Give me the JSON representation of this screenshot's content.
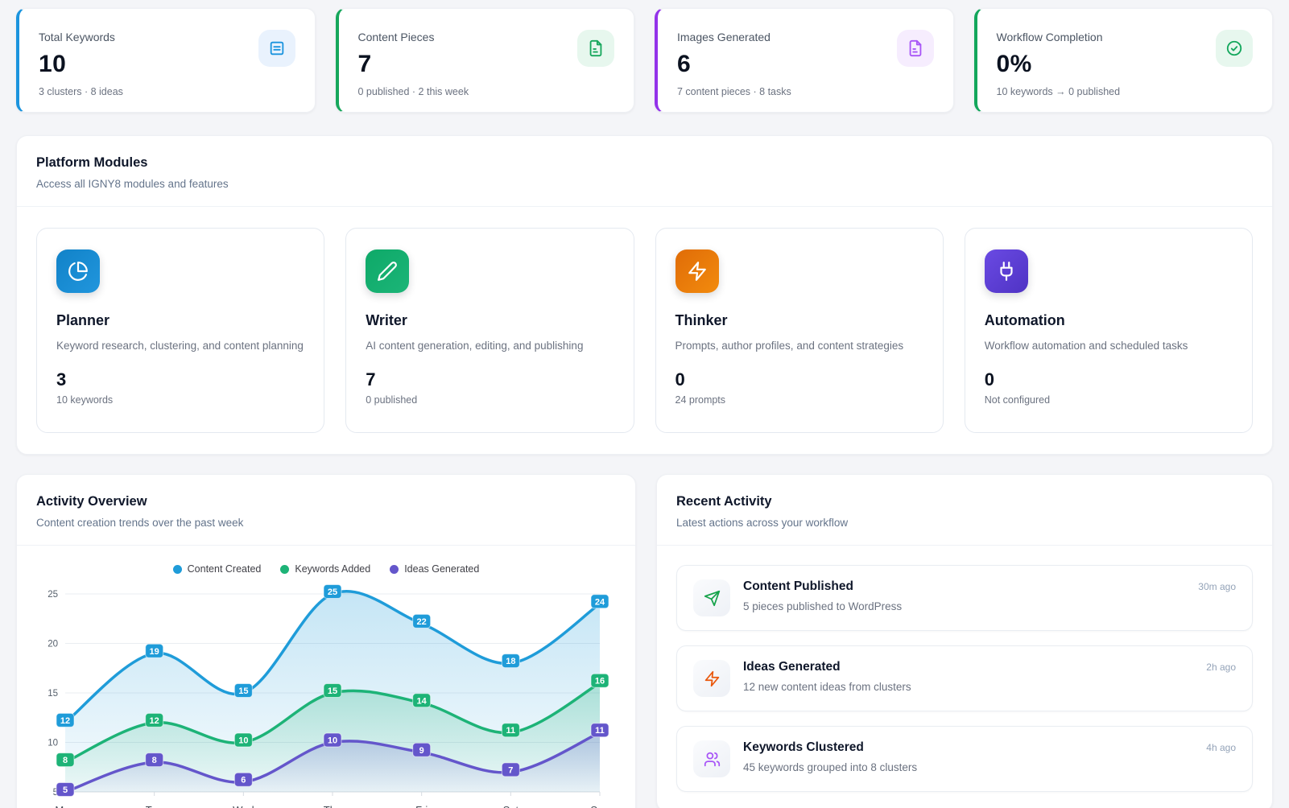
{
  "stats": [
    {
      "label": "Total Keywords",
      "value": "10",
      "caption": "3 clusters · 8 ideas",
      "accent": "#1b94de",
      "icon": "list-square-icon",
      "icon_bg": "#e9f2fd"
    },
    {
      "label": "Content Pieces",
      "value": "7",
      "caption": "0 published · 2 this week",
      "accent": "#16a75c",
      "icon": "file-text-icon",
      "icon_bg": "#e7f7ee"
    },
    {
      "label": "Images Generated",
      "value": "6",
      "caption": "7 content pieces · 8 tasks",
      "accent": "#9333ea",
      "icon": "file-text-icon",
      "icon_bg": "#f6edfe",
      "icon_color": "#a855f7"
    },
    {
      "label": "Workflow Completion",
      "value": "0%",
      "caption": "10 keywords → 0 published",
      "accent": "#13a75c",
      "icon": "check-circle-icon",
      "icon_bg": "#e7f7ee"
    }
  ],
  "modules_section": {
    "title": "Platform Modules",
    "subtitle": "Access all IGNY8 modules and features",
    "cards": [
      {
        "name": "Planner",
        "description": "Keyword research, clustering, and content planning",
        "value": "3",
        "caption": "10 keywords",
        "icon": "pie-chart-icon",
        "gradient": [
          "#1182c8",
          "#2196dd"
        ]
      },
      {
        "name": "Writer",
        "description": "AI content generation, editing, and publishing",
        "value": "7",
        "caption": "0 published",
        "icon": "pencil-icon",
        "gradient": [
          "#0ea968",
          "#1cb578"
        ]
      },
      {
        "name": "Thinker",
        "description": "Prompts, author profiles, and content strategies",
        "value": "0",
        "caption": "24 prompts",
        "icon": "zap-icon",
        "gradient": [
          "#e06c07",
          "#f28b0e"
        ]
      },
      {
        "name": "Automation",
        "description": "Workflow automation and scheduled tasks",
        "value": "0",
        "caption": "Not configured",
        "icon": "plug-icon",
        "gradient": [
          "#6a4ae3",
          "#4f33c4"
        ]
      }
    ]
  },
  "activity_overview": {
    "title": "Activity Overview",
    "subtitle": "Content creation trends over the past week"
  },
  "chart_data": {
    "type": "line",
    "x": [
      "Mon",
      "Tue",
      "Wed",
      "Thu",
      "Fri",
      "Sat",
      "Sun"
    ],
    "series": [
      {
        "name": "Content Created",
        "color": "#1f9cd9",
        "values": [
          12,
          19,
          15,
          25,
          22,
          18,
          24
        ]
      },
      {
        "name": "Keywords Added",
        "color": "#1db377",
        "values": [
          8,
          12,
          10,
          15,
          14,
          11,
          16
        ]
      },
      {
        "name": "Ideas Generated",
        "color": "#6456cb",
        "values": [
          5,
          8,
          6,
          10,
          9,
          7,
          11
        ]
      }
    ],
    "ylim": [
      5,
      25
    ],
    "yticks": [
      5,
      10,
      15,
      20,
      25
    ],
    "grid": true,
    "legend_position": "top",
    "area_fill": true,
    "point_labels": true,
    "smooth": true
  },
  "recent_activity": {
    "title": "Recent Activity",
    "subtitle": "Latest actions across your workflow",
    "items": [
      {
        "title": "Content Published",
        "description": "5 pieces published to WordPress",
        "time": "30m ago",
        "icon": "send-icon",
        "color": "#16a34a"
      },
      {
        "title": "Ideas Generated",
        "description": "12 new content ideas from clusters",
        "time": "2h ago",
        "icon": "zap-icon",
        "color": "#ea580c"
      },
      {
        "title": "Keywords Clustered",
        "description": "45 keywords grouped into 8 clusters",
        "time": "4h ago",
        "icon": "users-icon",
        "color": "#a855f7"
      }
    ]
  }
}
